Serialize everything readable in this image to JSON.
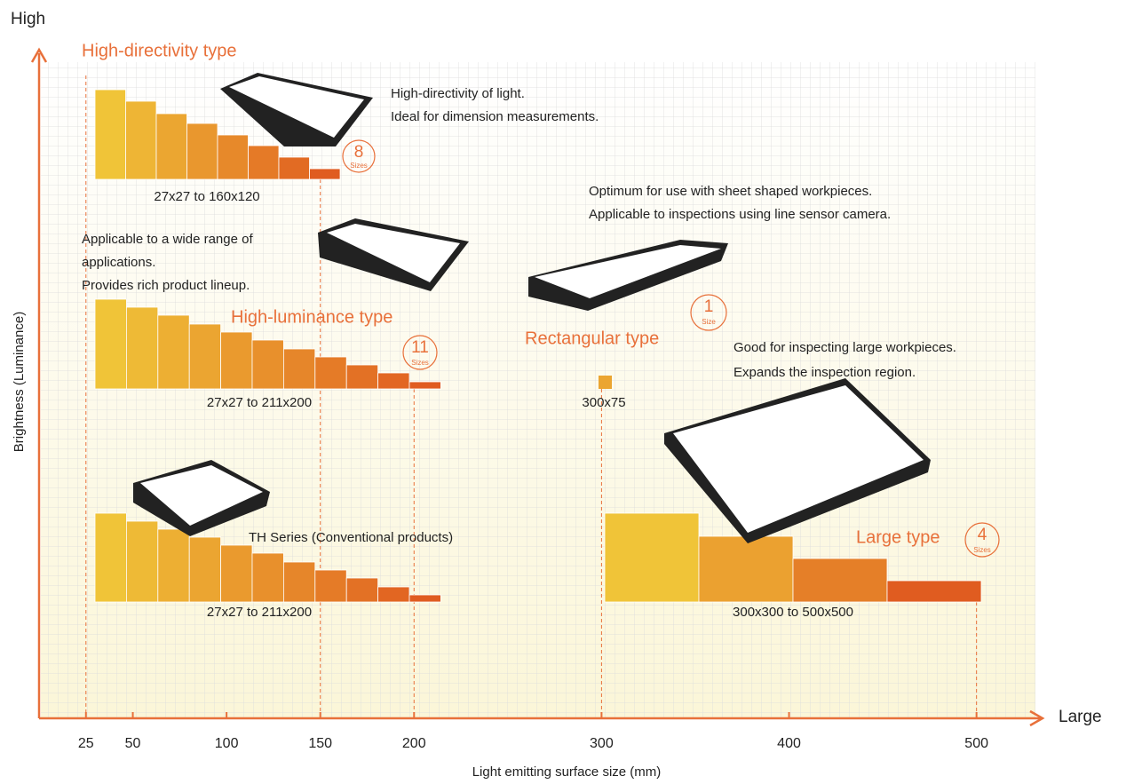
{
  "axes": {
    "y_high": "High",
    "y_label": "Brightness (Luminance)",
    "x_high": "Large",
    "x_label": "Light emitting surface size (mm)",
    "xlim": [
      0,
      530
    ],
    "xticks": [
      25,
      50,
      100,
      150,
      200,
      300,
      400,
      500
    ]
  },
  "groups": [
    {
      "title": "High-directivity type",
      "count": "8",
      "unit": "Sizes",
      "range": "27x27 to 160x120",
      "description": [
        "High-directivity of light.",
        "Ideal for dimension measurements."
      ]
    },
    {
      "title": "High-luminance type",
      "count": "11",
      "unit": "Sizes",
      "range": "27x27 to 211x200",
      "description": [
        "Applicable to a wide range of",
        "applications.",
        "Provides rich product lineup."
      ]
    },
    {
      "title": "Rectangular type",
      "count": "1",
      "unit": "Size",
      "range": "300x75",
      "description": [
        "Optimum for use with sheet shaped workpieces.",
        "Applicable to inspections using line sensor camera."
      ]
    },
    {
      "title": "Large type",
      "count": "4",
      "unit": "Sizes",
      "range": "300x300 to 500x500",
      "description": [
        "Good for inspecting large workpieces.",
        "Expands the inspection region."
      ]
    },
    {
      "title": "TH Series (Conventional products)",
      "range": "27x27 to 211x200"
    }
  ]
}
